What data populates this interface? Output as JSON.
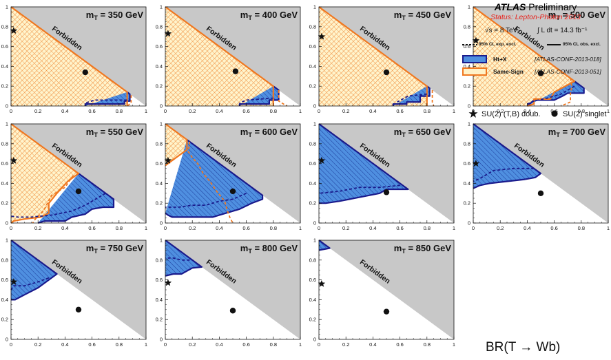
{
  "figure": {
    "xaxis_label": "BR(T → Wb)",
    "x_ticks": [
      "0",
      "0.2",
      "0.4",
      "0.6",
      "0.8",
      "1"
    ],
    "y_ticks": [
      "0",
      "0.2",
      "0.4",
      "0.6",
      "0.8",
      "1"
    ],
    "forbidden_label": "Forbidden"
  },
  "legend": {
    "atlas": "ATLAS",
    "preliminary": "Preliminary",
    "status": "Status: Lepton-Photon 2013",
    "energy": "√s = 8 TeV,",
    "lumi": "∫ L dt = 14.3 fb⁻¹",
    "exp_line": "95% CL exp. excl.",
    "obs_line": "95% CL obs. excl.",
    "entries": [
      {
        "name": "Ht+X",
        "ref": "[ATLAS-CONF-2013-018]",
        "edge": "#1a1a8c",
        "fill": "#4f8fe0"
      },
      {
        "name": "Same-Sign",
        "ref": "[ATLAS-CONF-2013-051]",
        "edge": "#f07820",
        "fill": "#fff2c8"
      }
    ],
    "doublet_label": "SU(2) (T,B) doub.",
    "singlet_label": "SU(2) singlet"
  },
  "colors": {
    "forbidden": "#c8c8c8",
    "same_sign_fill": "#fff4cc",
    "same_sign_hatch": "#f08c3c",
    "same_sign_edge": "#f07820",
    "htx_fill": "#4f8fe0",
    "htx_hatch": "#1c3c9c",
    "htx_edge": "#1a1a8c"
  },
  "chart_data": [
    {
      "type": "area",
      "title": "m_T = 350 GeV",
      "mass": "350",
      "xlabel": "BR(T → Wb)",
      "xlim": [
        0,
        1
      ],
      "ylim": [
        0,
        1
      ],
      "grid": false,
      "same_sign_obs": [
        [
          0,
          1
        ],
        [
          0.86,
          0.14
        ],
        [
          0.86,
          0
        ]
      ],
      "same_sign_exp": [
        [
          0.89,
          0.11
        ],
        [
          0.89,
          0.03
        ],
        [
          0.86,
          0
        ]
      ],
      "htx_obs": [
        [
          0.86,
          0.14
        ],
        [
          0.88,
          0.12
        ],
        [
          0.88,
          0.05
        ],
        [
          0.84,
          0.05
        ],
        [
          0.84,
          0.02
        ],
        [
          0.55,
          0.02
        ],
        [
          0.55,
          0
        ]
      ],
      "htx_exp": [
        [
          0.86,
          0.06
        ],
        [
          0.62,
          0.06
        ],
        [
          0.55,
          0.03
        ]
      ],
      "doublet": [
        0.02,
        0.76
      ],
      "singlet": [
        0.55,
        0.34
      ]
    },
    {
      "type": "area",
      "title": "m_T = 400 GeV",
      "mass": "400",
      "xlabel": "BR(T → Wb)",
      "xlim": [
        0,
        1
      ],
      "ylim": [
        0,
        1
      ],
      "grid": false,
      "same_sign_obs": [
        [
          0,
          1
        ],
        [
          0.8,
          0.2
        ],
        [
          0.8,
          0
        ]
      ],
      "same_sign_exp": [
        [
          0.84,
          0.16
        ],
        [
          0.84,
          0.05
        ],
        [
          0.9,
          0
        ]
      ],
      "htx_obs": [
        [
          0.8,
          0.2
        ],
        [
          0.84,
          0.16
        ],
        [
          0.84,
          0.06
        ],
        [
          0.77,
          0.06
        ],
        [
          0.77,
          0.02
        ],
        [
          0.55,
          0.02
        ],
        [
          0.55,
          0
        ]
      ],
      "htx_exp": [
        [
          0.8,
          0.08
        ],
        [
          0.6,
          0.06
        ],
        [
          0.55,
          0.03
        ]
      ],
      "doublet": [
        0.02,
        0.73
      ],
      "singlet": [
        0.52,
        0.35
      ]
    },
    {
      "type": "area",
      "title": "m_T = 450 GeV",
      "mass": "450",
      "xlabel": "BR(T → Wb)",
      "xlim": [
        0,
        1
      ],
      "ylim": [
        0,
        1
      ],
      "grid": false,
      "same_sign_obs": [
        [
          0,
          1
        ],
        [
          0.8,
          0.2
        ],
        [
          0.8,
          0
        ]
      ],
      "same_sign_exp": [
        [
          0.84,
          0.16
        ],
        [
          0.84,
          0.04
        ],
        [
          0.85,
          0
        ]
      ],
      "htx_obs": [
        [
          0.8,
          0.2
        ],
        [
          0.82,
          0.18
        ],
        [
          0.82,
          0.1
        ],
        [
          0.75,
          0.1
        ],
        [
          0.75,
          0.04
        ],
        [
          0.65,
          0.04
        ],
        [
          0.65,
          0.02
        ],
        [
          0.55,
          0.02
        ],
        [
          0.55,
          0
        ]
      ],
      "htx_exp": [
        [
          0.8,
          0.12
        ],
        [
          0.66,
          0.1
        ],
        [
          0.58,
          0.04
        ]
      ],
      "doublet": [
        0.02,
        0.7
      ],
      "singlet": [
        0.5,
        0.34
      ]
    },
    {
      "type": "area",
      "title": "m_T = 500 GeV",
      "mass": "500",
      "xlabel": "BR(T → Wb)",
      "xlim": [
        0,
        1
      ],
      "ylim": [
        0,
        1
      ],
      "grid": false,
      "same_sign_obs": [
        [
          0,
          1
        ],
        [
          0.75,
          0.25
        ],
        [
          0.6,
          0.14
        ],
        [
          0.57,
          0.07
        ],
        [
          0.45,
          0.07
        ],
        [
          0.45,
          0.02
        ],
        [
          0.4,
          0
        ]
      ],
      "same_sign_exp": [
        [
          0.72,
          0.28
        ],
        [
          0.73,
          0.2
        ],
        [
          0.72,
          0.12
        ],
        [
          0.72,
          0.04
        ],
        [
          0.65,
          0
        ]
      ],
      "htx_obs": [
        [
          0.75,
          0.25
        ],
        [
          0.82,
          0.18
        ],
        [
          0.82,
          0.13
        ],
        [
          0.7,
          0.13
        ],
        [
          0.66,
          0.1
        ],
        [
          0.6,
          0.06
        ],
        [
          0.45,
          0.06
        ],
        [
          0.4,
          0
        ]
      ],
      "htx_exp": [
        [
          0.75,
          0.2
        ],
        [
          0.65,
          0.12
        ],
        [
          0.55,
          0.08
        ],
        [
          0.45,
          0.05
        ],
        [
          0.4,
          0.02
        ]
      ],
      "doublet": [
        0.02,
        0.66
      ],
      "singlet": [
        0.5,
        0.33
      ]
    },
    {
      "type": "area",
      "title": "m_T = 550 GeV",
      "mass": "550",
      "xlabel": "BR(T → Wb)",
      "xlim": [
        0,
        1
      ],
      "ylim": [
        0,
        1
      ],
      "grid": false,
      "same_sign_obs": [
        [
          0,
          1
        ],
        [
          0.5,
          0.5
        ],
        [
          0.42,
          0.42
        ],
        [
          0.34,
          0.3
        ],
        [
          0.28,
          0.2
        ],
        [
          0.28,
          0.1
        ],
        [
          0.22,
          0.06
        ],
        [
          0.1,
          0.04
        ],
        [
          0.02,
          0.02
        ],
        [
          0,
          0
        ]
      ],
      "same_sign_exp": [
        [
          0.46,
          0.48
        ],
        [
          0.4,
          0.36
        ],
        [
          0.3,
          0.28
        ],
        [
          0.24,
          0.12
        ],
        [
          0.18,
          0.04
        ],
        [
          0.16,
          0
        ]
      ],
      "htx_obs": [
        [
          0.5,
          0.5
        ],
        [
          0.76,
          0.24
        ],
        [
          0.76,
          0.16
        ],
        [
          0.68,
          0.16
        ],
        [
          0.6,
          0.14
        ],
        [
          0.55,
          0.09
        ],
        [
          0.45,
          0.06
        ],
        [
          0.4,
          0.02
        ],
        [
          0.25,
          0.02
        ],
        [
          0.2,
          0
        ]
      ],
      "htx_exp": [
        [
          0.7,
          0.3
        ],
        [
          0.55,
          0.18
        ],
        [
          0.45,
          0.12
        ],
        [
          0.3,
          0.08
        ],
        [
          0.15,
          0.06
        ],
        [
          0.05,
          0.06
        ],
        [
          0,
          0.07
        ]
      ],
      "doublet": [
        0.02,
        0.63
      ],
      "singlet": [
        0.5,
        0.32
      ]
    },
    {
      "type": "area",
      "title": "m_T = 600 GeV",
      "mass": "600",
      "xlabel": "BR(T → Wb)",
      "xlim": [
        0,
        1
      ],
      "ylim": [
        0,
        1
      ],
      "grid": false,
      "same_sign_obs": [
        [
          0,
          1
        ],
        [
          0.16,
          0.84
        ],
        [
          0.16,
          0.74
        ],
        [
          0.1,
          0.68
        ],
        [
          0.04,
          0.62
        ],
        [
          0,
          0.58
        ]
      ],
      "same_sign_exp": [
        [
          0.18,
          0.82
        ],
        [
          0.17,
          0.72
        ],
        [
          0.2,
          0.66
        ],
        [
          0.24,
          0.6
        ],
        [
          0.28,
          0.5
        ],
        [
          0.33,
          0.42
        ],
        [
          0.38,
          0.32
        ],
        [
          0.44,
          0.22
        ],
        [
          0.46,
          0.12
        ],
        [
          0.48,
          0.05
        ],
        [
          0.5,
          0
        ]
      ],
      "htx_obs": [
        [
          0.16,
          0.84
        ],
        [
          0.72,
          0.28
        ],
        [
          0.72,
          0.24
        ],
        [
          0.64,
          0.2
        ],
        [
          0.55,
          0.14
        ],
        [
          0.45,
          0.1
        ],
        [
          0.35,
          0.06
        ],
        [
          0.25,
          0.06
        ],
        [
          0.15,
          0.06
        ],
        [
          0.05,
          0.06
        ],
        [
          0.02,
          0.08
        ],
        [
          0,
          0.1
        ]
      ],
      "htx_exp": [
        [
          0.6,
          0.3
        ],
        [
          0.5,
          0.24
        ],
        [
          0.4,
          0.22
        ],
        [
          0.3,
          0.18
        ],
        [
          0.2,
          0.18
        ],
        [
          0.1,
          0.16
        ],
        [
          0,
          0.16
        ]
      ],
      "doublet": [
        0.02,
        0.63
      ],
      "singlet": [
        0.5,
        0.32
      ]
    },
    {
      "type": "area",
      "title": "m_T = 650 GeV",
      "mass": "650",
      "xlabel": "BR(T → Wb)",
      "xlim": [
        0,
        1
      ],
      "ylim": [
        0,
        1
      ],
      "grid": false,
      "htx_obs": [
        [
          0,
          1
        ],
        [
          0.66,
          0.34
        ],
        [
          0.5,
          0.34
        ],
        [
          0.45,
          0.3
        ],
        [
          0.3,
          0.26
        ],
        [
          0.15,
          0.22
        ],
        [
          0.05,
          0.2
        ],
        [
          0,
          0.2
        ]
      ],
      "htx_exp": [
        [
          0.6,
          0.38
        ],
        [
          0.45,
          0.36
        ],
        [
          0.3,
          0.36
        ],
        [
          0.15,
          0.32
        ],
        [
          0,
          0.3
        ]
      ],
      "doublet": [
        0.02,
        0.63
      ],
      "singlet": [
        0.5,
        0.31
      ]
    },
    {
      "type": "area",
      "title": "m_T = 700 GeV",
      "mass": "700",
      "xlabel": "BR(T → Wb)",
      "xlim": [
        0,
        1
      ],
      "ylim": [
        0,
        1
      ],
      "grid": false,
      "htx_obs": [
        [
          0,
          1
        ],
        [
          0.5,
          0.5
        ],
        [
          0.46,
          0.46
        ],
        [
          0.38,
          0.44
        ],
        [
          0.25,
          0.42
        ],
        [
          0.12,
          0.4
        ],
        [
          0.05,
          0.38
        ],
        [
          0,
          0.35
        ]
      ],
      "htx_exp": [
        [
          0.45,
          0.55
        ],
        [
          0.3,
          0.55
        ],
        [
          0.15,
          0.53
        ],
        [
          0.05,
          0.45
        ],
        [
          0,
          0.42
        ]
      ],
      "doublet": [
        0.02,
        0.6
      ],
      "singlet": [
        0.5,
        0.3
      ]
    },
    {
      "type": "area",
      "title": "m_T = 750 GeV",
      "mass": "750",
      "xlabel": "BR(T → Wb)",
      "xlim": [
        0,
        1
      ],
      "ylim": [
        0,
        1
      ],
      "grid": false,
      "htx_obs": [
        [
          0,
          1
        ],
        [
          0.34,
          0.66
        ],
        [
          0.28,
          0.6
        ],
        [
          0.2,
          0.52
        ],
        [
          0.1,
          0.45
        ],
        [
          0.03,
          0.4
        ],
        [
          0,
          0.4
        ]
      ],
      "htx_exp": [
        [
          0.28,
          0.62
        ],
        [
          0.2,
          0.58
        ],
        [
          0.1,
          0.54
        ],
        [
          0.02,
          0.54
        ],
        [
          0,
          0.5
        ]
      ],
      "doublet": [
        0.02,
        0.58
      ],
      "singlet": [
        0.5,
        0.3
      ]
    },
    {
      "type": "area",
      "title": "m_T = 800 GeV",
      "mass": "800",
      "xlabel": "BR(T → Wb)",
      "xlim": [
        0,
        1
      ],
      "ylim": [
        0,
        1
      ],
      "grid": false,
      "htx_obs": [
        [
          0,
          1
        ],
        [
          0.27,
          0.73
        ],
        [
          0.2,
          0.72
        ],
        [
          0.12,
          0.66
        ],
        [
          0.06,
          0.66
        ],
        [
          0,
          0.64
        ]
      ],
      "htx_exp": [
        [
          0.18,
          0.8
        ],
        [
          0.12,
          0.8
        ],
        [
          0.06,
          0.82
        ],
        [
          0,
          0.82
        ]
      ],
      "doublet": [
        0.02,
        0.57
      ],
      "singlet": [
        0.5,
        0.29
      ]
    },
    {
      "type": "area",
      "title": "m_T = 850 GeV",
      "mass": "850",
      "xlabel": "BR(T → Wb)",
      "xlim": [
        0,
        1
      ],
      "ylim": [
        0,
        1
      ],
      "grid": false,
      "htx_obs": [
        [
          0,
          1
        ],
        [
          0.08,
          0.92
        ],
        [
          0.04,
          0.91
        ],
        [
          0,
          0.9
        ]
      ],
      "htx_exp": [],
      "doublet": [
        0.02,
        0.56
      ],
      "singlet": [
        0.5,
        0.28
      ]
    }
  ]
}
